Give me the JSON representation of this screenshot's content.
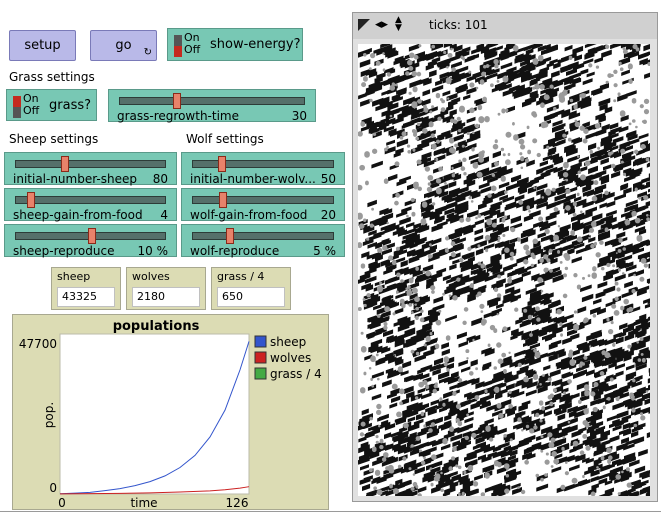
{
  "buttons": {
    "setup": "setup",
    "go": "go"
  },
  "show_energy": {
    "on": "On",
    "off": "Off",
    "label": "show-energy?"
  },
  "sections": {
    "grass": "Grass settings",
    "sheep": "Sheep settings",
    "wolf": "Wolf settings"
  },
  "grass_switch": {
    "on": "On",
    "off": "Off",
    "label": "grass?"
  },
  "sliders": {
    "grass_regrowth_time": {
      "name": "grass-regrowth-time",
      "value": "30",
      "level": 0.3
    },
    "initial_number_sheep": {
      "name": "initial-number-sheep",
      "value": "80",
      "level": 0.32
    },
    "initial_number_wolves": {
      "name": "initial-number-wolv...",
      "value": "50",
      "level": 0.19
    },
    "sheep_gain_from_food": {
      "name": "sheep-gain-from-food",
      "value": "4",
      "level": 0.08
    },
    "wolf_gain_from_food": {
      "name": "wolf-gain-from-food",
      "value": "20",
      "level": 0.2
    },
    "sheep_reproduce": {
      "name": "sheep-reproduce",
      "value": "10 %",
      "level": 0.5
    },
    "wolf_reproduce": {
      "name": "wolf-reproduce",
      "value": "5 %",
      "level": 0.25
    }
  },
  "monitors": [
    {
      "name": "sheep",
      "value": "43325"
    },
    {
      "name": "wolves",
      "value": "2180"
    },
    {
      "name": "grass / 4",
      "value": "650"
    }
  ],
  "view": {
    "ticks_label": "ticks: 101"
  },
  "chart_data": {
    "type": "line",
    "title": "populations",
    "xlabel": "time",
    "ylabel": "pop.",
    "xlim": [
      0,
      126
    ],
    "ylim": [
      0,
      47700
    ],
    "x_tick_labels": [
      "0",
      "126"
    ],
    "y_tick_labels": [
      "0",
      "47700"
    ],
    "legend_position": "right",
    "series": [
      {
        "name": "sheep",
        "color": "#3355cc",
        "x": [
          0,
          10,
          20,
          30,
          40,
          50,
          60,
          70,
          80,
          90,
          100,
          110,
          120,
          126
        ],
        "y": [
          80,
          250,
          500,
          1000,
          1600,
          2500,
          3700,
          5400,
          7900,
          11500,
          17000,
          25000,
          37000,
          45500
        ]
      },
      {
        "name": "wolves",
        "color": "#cc2222",
        "x": [
          0,
          20,
          40,
          60,
          80,
          100,
          110,
          120,
          126
        ],
        "y": [
          50,
          100,
          200,
          350,
          600,
          950,
          1250,
          1750,
          2180
        ]
      },
      {
        "name": "grass / 4",
        "color": "#44aa44",
        "x": [],
        "y": []
      }
    ]
  }
}
